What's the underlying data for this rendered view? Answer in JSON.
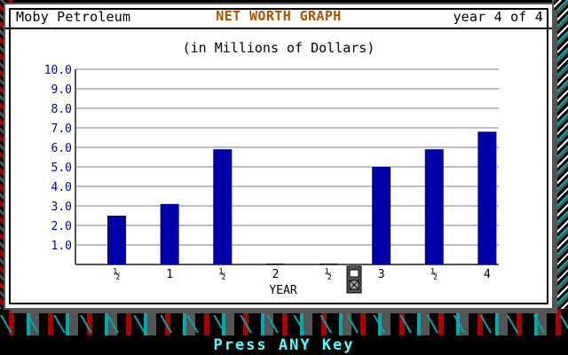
{
  "window": {
    "company": "Moby Petroleum",
    "title": "NET WORTH GRAPH",
    "year_status": "year 4 of 4",
    "subtitle": "(in Millions of Dollars)"
  },
  "status": {
    "prompt": "Press ANY Key"
  },
  "icons": {
    "cursor": "gas-pump-cursor-icon"
  },
  "colors": {
    "bar": "#0000aa",
    "title": "#aa5500",
    "y_ticks": "#0000aa",
    "status": "#55ffff"
  },
  "chart_data": {
    "type": "bar",
    "categories": [
      "½",
      "1",
      "½",
      "2",
      "½",
      "3",
      "½",
      "4"
    ],
    "values": [
      2.5,
      3.1,
      5.9,
      0.05,
      0.05,
      5.0,
      5.9,
      6.8
    ],
    "y_ticks": [
      "1.0",
      "2.0",
      "3.0",
      "4.0",
      "5.0",
      "6.0",
      "7.0",
      "8.0",
      "9.0",
      "10.0"
    ],
    "title": "NET WORTH GRAPH",
    "subtitle": "(in Millions of Dollars)",
    "xlabel": "YEAR",
    "ylabel": "",
    "ylim": [
      0,
      10
    ],
    "grid": true
  }
}
